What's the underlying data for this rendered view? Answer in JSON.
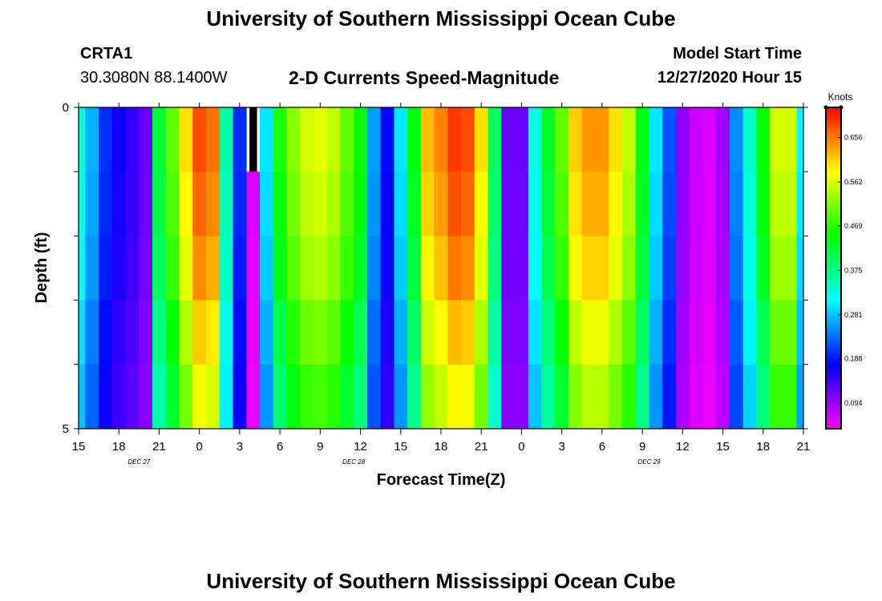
{
  "header": {
    "title": "University of Southern Mississippi Ocean Cube",
    "station": "CRTA1",
    "coords": "30.3080N 88.1400W",
    "chart_title": "2-D Currents Speed-Magnitude",
    "model_label": "Model Start Time",
    "model_time": "12/27/2020 Hour 15"
  },
  "footer": {
    "title": "University of Southern Mississippi Ocean Cube"
  },
  "chart_data": {
    "type": "heatmap",
    "title": "2-D Currents Speed-Magnitude",
    "xlabel": "Forecast Time(Z)",
    "ylabel": "Depth (ft)",
    "x_hours": [
      15,
      16,
      17,
      18,
      19,
      20,
      21,
      22,
      23,
      0,
      1,
      2,
      3,
      4,
      5,
      6,
      7,
      8,
      9,
      10,
      11,
      12,
      13,
      14,
      15,
      16,
      17,
      18,
      19,
      20,
      21,
      22,
      23,
      0,
      1,
      2,
      3,
      4,
      5,
      6,
      7,
      8,
      9,
      10,
      11,
      12,
      13,
      14,
      15,
      16,
      17,
      18,
      19,
      20,
      21
    ],
    "x_tick_labels": [
      "15",
      "18",
      "21",
      "0",
      "3",
      "6",
      "9",
      "12",
      "15",
      "18",
      "21",
      "0",
      "3",
      "6",
      "9",
      "12",
      "15",
      "18",
      "21"
    ],
    "date_labels": [
      {
        "label": "DEC  27",
        "hour_index": 4.5
      },
      {
        "label": "DEC  28",
        "hour_index": 20.5
      },
      {
        "label": "DEC  29",
        "hour_index": 42.5
      }
    ],
    "y_tick_labels": [
      "0",
      "5"
    ],
    "ylim": [
      0,
      5
    ],
    "depth_layers": 5,
    "colorbar": {
      "title": "Knots",
      "ticks": [
        0.094,
        0.188,
        0.281,
        0.375,
        0.469,
        0.562,
        0.656
      ],
      "tick_labels": [
        "0.094",
        "0.188",
        "0.281",
        "0.375",
        "0.469",
        "0.562",
        "0.656"
      ],
      "range": [
        0.04,
        0.72
      ],
      "colors": [
        "#ff00ff",
        "#8000ff",
        "#0000ff",
        "#0080ff",
        "#00ffff",
        "#00ff80",
        "#00ff00",
        "#80ff00",
        "#ffff00",
        "#ff8000",
        "#ff0000"
      ]
    },
    "speed_profile_surface": [
      0.33,
      0.27,
      0.2,
      0.17,
      0.15,
      0.12,
      0.42,
      0.5,
      0.6,
      0.68,
      0.66,
      0.36,
      0.2,
      0.0,
      0.3,
      0.46,
      0.52,
      0.56,
      0.57,
      0.55,
      0.5,
      0.45,
      0.26,
      0.18,
      0.3,
      0.44,
      0.62,
      0.65,
      0.69,
      0.68,
      0.6,
      0.4,
      0.12,
      0.12,
      0.33,
      0.43,
      0.5,
      0.61,
      0.64,
      0.64,
      0.6,
      0.55,
      0.44,
      0.3,
      0.22,
      0.1,
      0.07,
      0.06,
      0.09,
      0.25,
      0.34,
      0.45,
      0.56,
      0.56,
      0.31
    ],
    "depth_factors": [
      1.0,
      0.98,
      0.95,
      0.9,
      0.85
    ],
    "missing_cells": [
      {
        "hour_index": 13,
        "layer": 0
      }
    ]
  }
}
